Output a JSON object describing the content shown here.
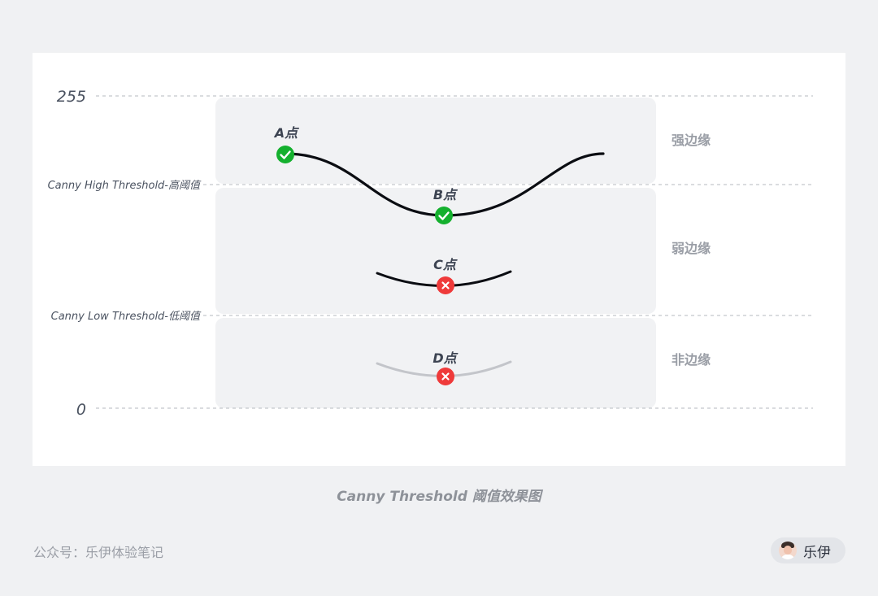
{
  "diagram": {
    "axis": {
      "max_label": "255",
      "high_threshold_label": "Canny High Threshold-高阈值",
      "low_threshold_label": "Canny Low Threshold-低阈值",
      "min_label": "0"
    },
    "points": [
      {
        "label": "A点",
        "status": "accepted",
        "icon": "check-icon"
      },
      {
        "label": "B点",
        "status": "accepted",
        "icon": "check-icon"
      },
      {
        "label": "C点",
        "status": "rejected",
        "icon": "cross-icon"
      },
      {
        "label": "D点",
        "status": "rejected",
        "icon": "cross-icon"
      }
    ],
    "regions": {
      "strong": "强边缘",
      "weak": "弱边缘",
      "non": "非边缘"
    },
    "colors": {
      "accept": "#14b02e",
      "reject": "#ef3a3a",
      "curve": "#0b0d12",
      "curve_faint": "#c3c5ca",
      "region_bg": "#f1f2f4"
    }
  },
  "caption": "Canny Threshold 阈值效果图",
  "footer": {
    "source": "公众号：乐伊体验笔记",
    "author": "乐伊"
  }
}
